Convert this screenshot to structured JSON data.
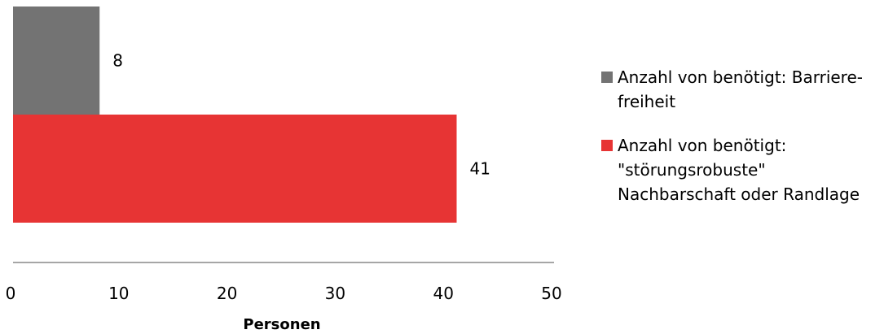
{
  "chart_data": {
    "type": "bar",
    "orientation": "horizontal",
    "xlabel": "Personen",
    "xlim": [
      0,
      50
    ],
    "xticks": [
      0,
      10,
      20,
      30,
      40,
      50
    ],
    "grid": false,
    "legend_position": "right",
    "series": [
      {
        "name": "Anzahl von benötigt: Barriere-freiheit",
        "legend_lines": [
          "Anzahl von benötigt: Barriere-",
          "freiheit"
        ],
        "value": 8,
        "label": "8",
        "color": "#737373"
      },
      {
        "name": "Anzahl von benötigt: \"störungsrobuste\" Nachbarschaft oder Randlage",
        "legend_lines": [
          "Anzahl von benötigt:",
          "\"störungsrobuste\"",
          "Nachbarschaft oder Randlage"
        ],
        "value": 41,
        "label": "41",
        "color": "#e73434"
      }
    ]
  }
}
